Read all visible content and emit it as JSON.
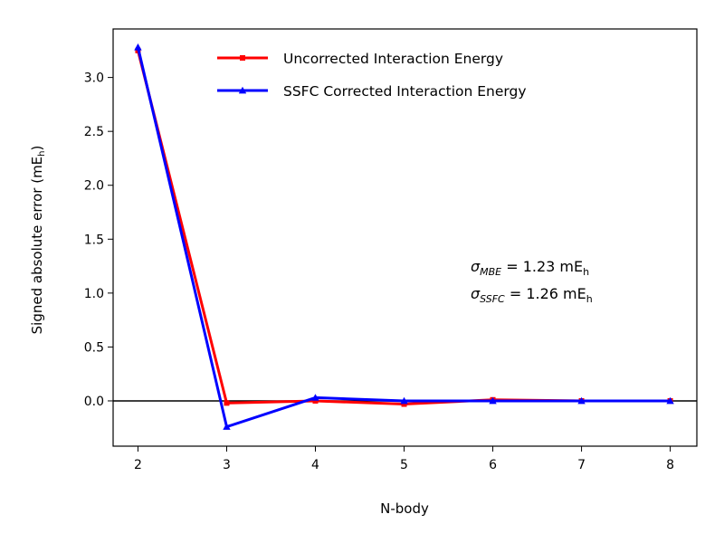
{
  "chart_data": {
    "type": "line",
    "title": "",
    "xlabel": "N-body",
    "ylabel": "Signed absolute error (mE",
    "ylabel_sub": "h",
    "ylabel_close": ")",
    "xlim": [
      1.72,
      8.3
    ],
    "ylim": [
      -0.42,
      3.45
    ],
    "x": [
      2,
      3,
      4,
      5,
      6,
      7,
      8
    ],
    "xticks": [
      "2",
      "3",
      "4",
      "5",
      "6",
      "7",
      "8"
    ],
    "yticks": [
      0.0,
      0.5,
      1.0,
      1.5,
      2.0,
      2.5,
      3.0
    ],
    "ytick_labels": [
      "0.0",
      "0.5",
      "1.0",
      "1.5",
      "2.0",
      "2.5",
      "3.0"
    ],
    "zero_line": true,
    "grid": false,
    "legend_position": "top-right",
    "series": [
      {
        "name": "Uncorrected Interaction Energy",
        "color": "#ff0000",
        "marker": "square",
        "values": [
          3.25,
          -0.02,
          0.0,
          -0.03,
          0.01,
          0.0,
          0.0
        ]
      },
      {
        "name": "SSFC Corrected Interaction Energy",
        "color": "#0000ff",
        "marker": "triangle",
        "values": [
          3.28,
          -0.24,
          0.03,
          0.0,
          0.0,
          0.0,
          0.0
        ]
      }
    ],
    "annotations": [
      {
        "symbol": "σ",
        "sub": "MBE",
        "text": " = 1.23 mE",
        "unit_sub": "h"
      },
      {
        "symbol": "σ",
        "sub": "SSFC",
        "text": " = 1.26 mE",
        "unit_sub": "h"
      }
    ]
  }
}
